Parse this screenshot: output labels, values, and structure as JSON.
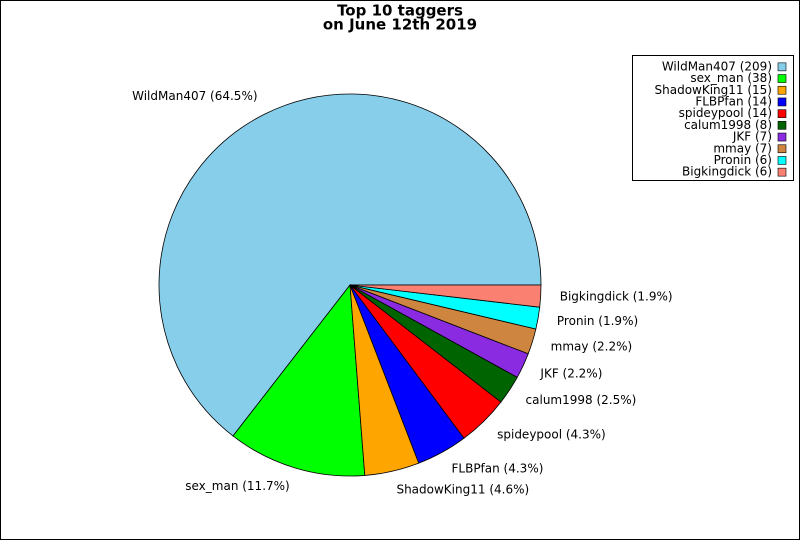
{
  "chart_data": {
    "type": "pie",
    "title": [
      "Top 10 taggers",
      "on June 12th 2019"
    ],
    "categories": [
      "WildMan407",
      "sex_man",
      "ShadowKing11",
      "FLBPfan",
      "spideypool",
      "calum1998",
      "JKF",
      "mmay",
      "Pronin",
      "Bigkingdick"
    ],
    "values": [
      209,
      38,
      15,
      14,
      14,
      8,
      7,
      7,
      6,
      6
    ],
    "value_labels": [
      "WildMan407 (209)",
      "sex_man (38)",
      "ShadowKing11 (15)",
      "FLBPfan (14)",
      "spideypool (14)",
      "calum1998 (8)",
      "JKF (7)",
      "mmay (7)",
      "Pronin (6)",
      "Bigkingdick (6)"
    ],
    "percents": [
      64.5,
      11.7,
      4.6,
      4.3,
      4.3,
      2.5,
      2.2,
      2.2,
      1.9,
      1.9
    ],
    "percent_labels": [
      "WildMan407 (64.5%)",
      "sex_man (11.7%)",
      "ShadowKing11 (4.6%)",
      "FLBPfan (4.3%)",
      "spideypool (4.3%)",
      "calum1998 (2.5%)",
      "JKF (2.2%)",
      "mmay (2.2%)",
      "Pronin (1.9%)",
      "Bigkingdick (1.9%)"
    ],
    "colors": [
      "#87ceeb",
      "#00ff00",
      "#ffa500",
      "#0000ff",
      "#ff0000",
      "#006400",
      "#8a2be2",
      "#cd853f",
      "#00ffff",
      "#fa8072"
    ],
    "legend": "upper right"
  }
}
